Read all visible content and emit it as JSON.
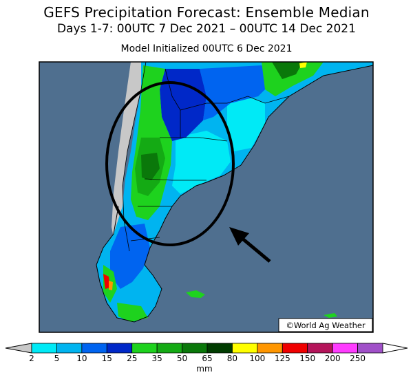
{
  "header": {
    "title": "GEFS Precipitation Forecast: Ensemble Median",
    "period": "Days 1-7: 00UTC 7 Dec 2021 – 00UTC 14 Dec 2021",
    "init": "Model Initialized 00UTC 6 Dec 2021"
  },
  "map": {
    "region": "South America",
    "ocean_color": "#4f6f8f",
    "land_nodata_color": "#c8c8c8",
    "annotation": {
      "shape": "ellipse",
      "arrow": true,
      "color": "#000000"
    },
    "credit": "©World Ag Weather"
  },
  "legend": {
    "unit": "mm",
    "ticks": [
      "2",
      "5",
      "10",
      "15",
      "25",
      "35",
      "50",
      "65",
      "80",
      "100",
      "125",
      "150",
      "200",
      "250"
    ],
    "colors": [
      "#00eaf6",
      "#00b4f0",
      "#0064f0",
      "#0028c8",
      "#1ed21e",
      "#14aa14",
      "#0a780a",
      "#003c00",
      "#ffff00",
      "#ff9600",
      "#f00000",
      "#b4145a",
      "#ff3cff",
      "#a050c8"
    ],
    "under_color": "#c8c8c8",
    "over_color": "#ffffff"
  }
}
